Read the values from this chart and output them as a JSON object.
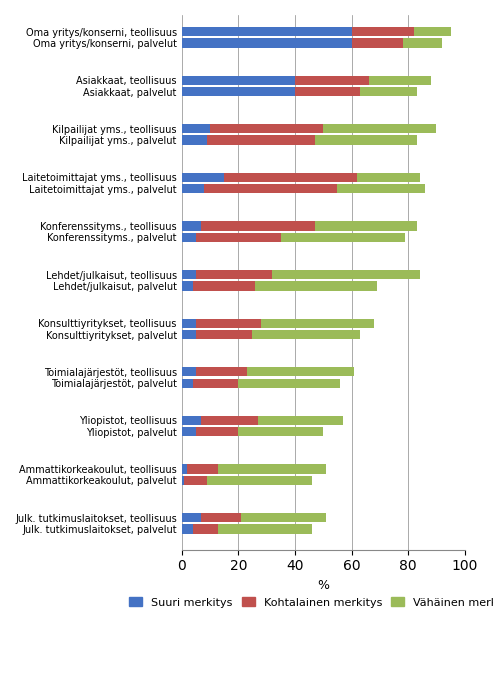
{
  "categories": [
    "Oma yritys/konserni, teollisuus",
    "Oma yritys/konserni, palvelut",
    "Asiakkaat, teollisuus",
    "Asiakkaat, palvelut",
    "Kilpailijat yms., teollisuus",
    "Kilpailijat yms., palvelut",
    "Laitetoimittajat yms., teollisuus",
    "Laitetoimittajat yms., palvelut",
    "Konferenssityms., teollisuus",
    "Konferenssityms., palvelut",
    "Lehdet/julkaisut, teollisuus",
    "Lehdet/julkaisut, palvelut",
    "Konsulttiyritykset, teollisuus",
    "Konsulttiyritykset, palvelut",
    "Toimialajärjestöt, teollisuus",
    "Toimialajärjestöt, palvelut",
    "Yliopistot, teollisuus",
    "Yliopistot, palvelut",
    "Ammattikorkeakoulut, teollisuus",
    "Ammattikorkeakoulut, palvelut",
    "Julk. tutkimuslaitokset, teollisuus",
    "Julk. tutkimuslaitokset, palvelut"
  ],
  "suuri": [
    60,
    60,
    40,
    40,
    10,
    9,
    15,
    8,
    7,
    5,
    5,
    4,
    5,
    5,
    5,
    4,
    7,
    5,
    2,
    1,
    7,
    4
  ],
  "kohtalainen": [
    22,
    18,
    26,
    23,
    40,
    38,
    47,
    47,
    40,
    30,
    27,
    22,
    23,
    20,
    18,
    16,
    20,
    15,
    11,
    8,
    14,
    9
  ],
  "vahanen": [
    13,
    14,
    22,
    20,
    40,
    36,
    22,
    31,
    36,
    44,
    52,
    43,
    40,
    38,
    38,
    36,
    30,
    30,
    38,
    37,
    30,
    33
  ],
  "color_suuri": "#4472c4",
  "color_kohtalainen": "#c0504d",
  "color_vahanen": "#9bbb59",
  "xlabel": "%",
  "xlim": [
    0,
    100
  ],
  "xticks": [
    0,
    20,
    40,
    60,
    80,
    100
  ],
  "legend_labels": [
    "Suuri merkitys",
    "Kohtalainen merkitys",
    "Vähäinen merkitys"
  ],
  "figsize": [
    4.93,
    6.73
  ],
  "dpi": 100
}
